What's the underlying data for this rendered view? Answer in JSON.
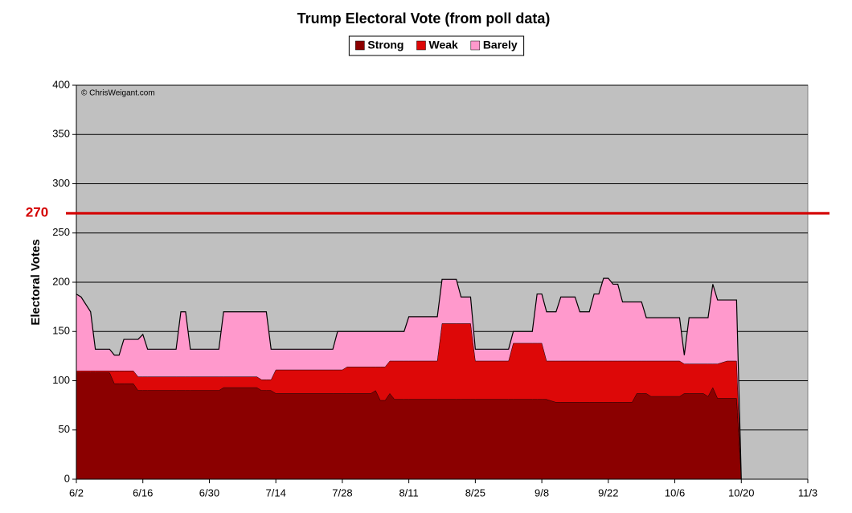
{
  "chart_data": {
    "type": "stacked_area",
    "title": "Trump Electoral Vote (from poll data)",
    "y_label": "Electoral Votes",
    "annotation": "© ChrisWeigant.com",
    "threshold": 270,
    "threshold_color": "#d40000",
    "x": [
      "6/2",
      "6/3",
      "6/5",
      "6/6",
      "6/9",
      "6/10",
      "6/11",
      "6/12",
      "6/14",
      "6/15",
      "6/16",
      "6/17",
      "6/23",
      "6/24",
      "6/25",
      "6/26",
      "7/2",
      "7/3",
      "7/10",
      "7/11",
      "7/12",
      "7/13",
      "7/14",
      "7/26",
      "7/27",
      "7/28",
      "7/29",
      "8/3",
      "8/4",
      "8/5",
      "8/6",
      "8/7",
      "8/8",
      "8/10",
      "8/11",
      "8/17",
      "8/18",
      "8/21",
      "8/22",
      "8/24",
      "8/25",
      "9/1",
      "9/2",
      "9/6",
      "9/7",
      "9/8",
      "9/9",
      "9/11",
      "9/12",
      "9/15",
      "9/16",
      "9/18",
      "9/19",
      "9/20",
      "9/21",
      "9/22",
      "9/23",
      "9/24",
      "9/25",
      "9/27",
      "9/28",
      "9/29",
      "9/30",
      "10/1",
      "10/7",
      "10/8",
      "10/9",
      "10/12",
      "10/13",
      "10/14",
      "10/15",
      "10/17",
      "10/19",
      "10/20"
    ],
    "series": [
      {
        "name": "Strong",
        "color": "#8b0000",
        "values": [
          108,
          108,
          108,
          108,
          108,
          97,
          97,
          97,
          97,
          90,
          90,
          90,
          90,
          90,
          90,
          90,
          90,
          93,
          93,
          90,
          90,
          90,
          87,
          87,
          87,
          87,
          87,
          87,
          90,
          80,
          80,
          87,
          81,
          81,
          81,
          81,
          81,
          81,
          81,
          81,
          81,
          81,
          81,
          81,
          81,
          81,
          81,
          78,
          78,
          78,
          78,
          78,
          78,
          78,
          78,
          78,
          78,
          78,
          78,
          78,
          87,
          87,
          87,
          84,
          84,
          87,
          87,
          87,
          84,
          93,
          82,
          82,
          82,
          0
        ]
      },
      {
        "name": "Weak",
        "color": "#dd0808",
        "values": [
          2,
          2,
          2,
          2,
          2,
          13,
          13,
          13,
          13,
          14,
          14,
          14,
          14,
          14,
          14,
          14,
          14,
          11,
          11,
          11,
          11,
          11,
          24,
          24,
          24,
          24,
          27,
          27,
          24,
          34,
          34,
          33,
          39,
          39,
          39,
          39,
          77,
          77,
          77,
          77,
          39,
          39,
          57,
          57,
          57,
          57,
          39,
          42,
          42,
          42,
          42,
          42,
          42,
          42,
          42,
          42,
          42,
          42,
          42,
          42,
          33,
          33,
          33,
          36,
          36,
          30,
          30,
          30,
          33,
          24,
          35,
          38,
          38,
          0
        ]
      },
      {
        "name": "Barely",
        "color": "#ff99cc",
        "values": [
          78,
          75,
          60,
          22,
          22,
          16,
          16,
          32,
          32,
          38,
          43,
          28,
          28,
          66,
          66,
          28,
          28,
          66,
          66,
          69,
          69,
          31,
          21,
          21,
          39,
          39,
          36,
          36,
          36,
          36,
          36,
          30,
          30,
          30,
          45,
          45,
          45,
          45,
          27,
          27,
          12,
          12,
          12,
          12,
          50,
          50,
          50,
          50,
          65,
          65,
          50,
          50,
          68,
          68,
          84,
          84,
          78,
          78,
          60,
          60,
          60,
          60,
          44,
          44,
          44,
          9,
          47,
          47,
          47,
          81,
          65,
          62,
          62,
          0
        ]
      }
    ],
    "xlim": [
      "6/2",
      "11/3"
    ],
    "xticks": [
      "6/2",
      "6/16",
      "6/30",
      "7/14",
      "7/28",
      "8/11",
      "8/25",
      "9/8",
      "9/22",
      "10/6",
      "10/20",
      "11/3"
    ],
    "ylim": [
      0,
      400
    ],
    "yticks": [
      0,
      50,
      100,
      150,
      200,
      250,
      300,
      350,
      400
    ],
    "grid": true,
    "legend": "top"
  }
}
